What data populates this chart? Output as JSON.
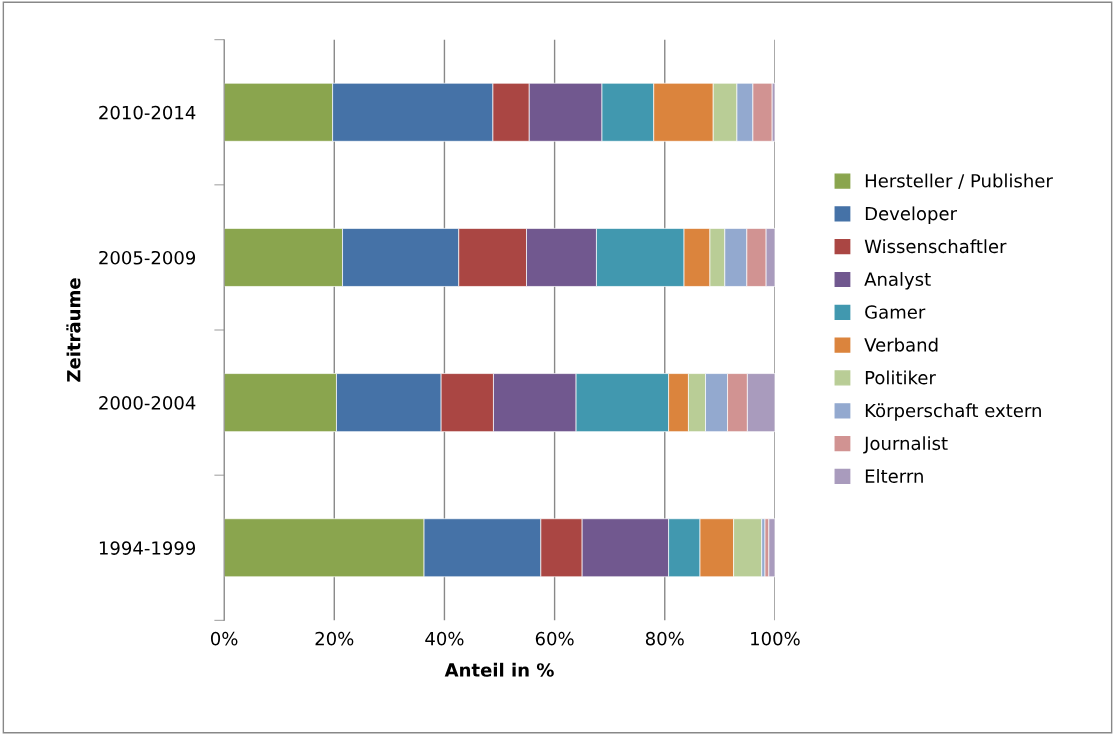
{
  "chart_data": {
    "type": "bar",
    "orientation": "horizontal",
    "stacked": true,
    "xlabel": "Anteil in %",
    "ylabel": "Zeiträume",
    "categories": [
      "2010-2014",
      "2005-2009",
      "2000-2004",
      "1994-1999"
    ],
    "xlim": [
      0,
      100
    ],
    "xticks": [
      {
        "value": 0,
        "label": "0%"
      },
      {
        "value": 20,
        "label": "20%"
      },
      {
        "value": 40,
        "label": "40%"
      },
      {
        "value": 60,
        "label": "60%"
      },
      {
        "value": 80,
        "label": "80%"
      },
      {
        "value": 100,
        "label": "100%"
      }
    ],
    "grid": "x",
    "legend": "right",
    "series": [
      {
        "name": "Hersteller / Publisher",
        "color": "#8aa54e",
        "values": [
          19.7,
          21.5,
          20.4,
          36.3
        ]
      },
      {
        "name": "Developer",
        "color": "#4572a7",
        "values": [
          29.1,
          21.1,
          19.0,
          21.2
        ]
      },
      {
        "name": "Wissenschaftler",
        "color": "#aa4643",
        "values": [
          6.6,
          12.3,
          9.5,
          7.5
        ]
      },
      {
        "name": "Analyst",
        "color": "#71588f",
        "values": [
          13.2,
          12.7,
          15.0,
          15.7
        ]
      },
      {
        "name": "Gamer",
        "color": "#4198af",
        "values": [
          9.4,
          15.9,
          16.8,
          5.7
        ]
      },
      {
        "name": "Verband",
        "color": "#db843d",
        "values": [
          10.8,
          4.7,
          3.6,
          6.1
        ]
      },
      {
        "name": "Politiker",
        "color": "#b9cd96",
        "values": [
          4.3,
          2.7,
          3.1,
          5.1
        ]
      },
      {
        "name": "Körperschaft extern",
        "color": "#93a9cf",
        "values": [
          2.9,
          4.0,
          4.0,
          0.6
        ]
      },
      {
        "name": "Journalist",
        "color": "#d19392",
        "values": [
          3.5,
          3.5,
          3.6,
          0.7
        ]
      },
      {
        "name": "Elterrn",
        "color": "#a99bbd",
        "values": [
          0.5,
          1.6,
          5.0,
          1.1
        ]
      }
    ]
  }
}
